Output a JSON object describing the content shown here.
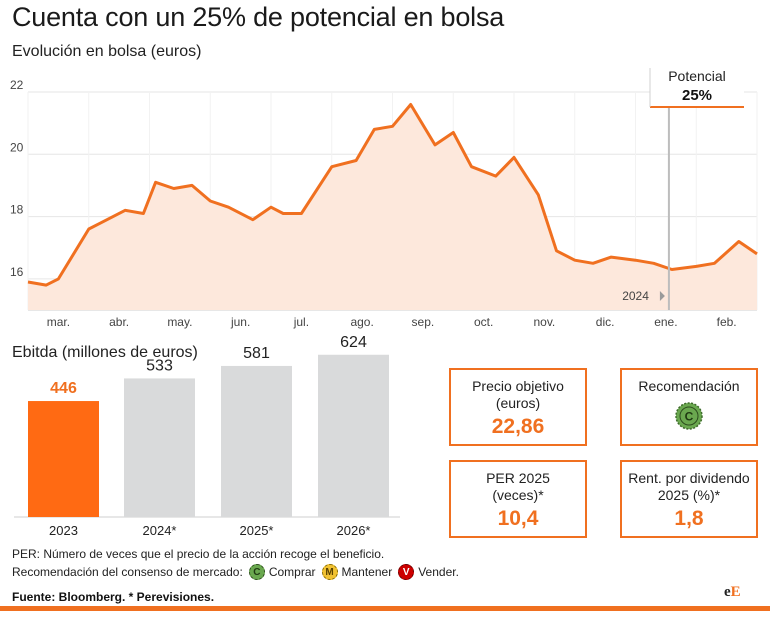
{
  "title": "Cuenta con un 25% de potencial en bolsa",
  "subtitle_price": "Evolución en bolsa (euros)",
  "subtitle_ebitda": "Ebitda (millones de euros)",
  "colors": {
    "accent": "#f07020",
    "area": "#fde8dc",
    "bar_highlight": "#ff6a13",
    "bar_other": "#d9dadb",
    "grid": "#e6e6e6"
  },
  "chart_data": [
    {
      "type": "line",
      "title": "Evolución en bolsa (euros)",
      "ylim": [
        15,
        22
      ],
      "yticks": [
        "22",
        "20",
        "18",
        "16"
      ],
      "x_labels": [
        "mar.",
        "abr.",
        "may.",
        "jun.",
        "jul.",
        "ago.",
        "sep.",
        "oct.",
        "nov.",
        "dic.",
        "ene.",
        "feb."
      ],
      "year_marker": "2024",
      "annotation": {
        "label": "Potencial",
        "value": "25%"
      },
      "series": [
        {
          "x": [
            0.0,
            0.3,
            0.5,
            1.0,
            1.2,
            1.6,
            1.9,
            2.1,
            2.4,
            2.7,
            3.0,
            3.3,
            3.7,
            4.0,
            4.2,
            4.5,
            5.0,
            5.4,
            5.7,
            6.0,
            6.3,
            6.7,
            7.0,
            7.3,
            7.7,
            8.0,
            8.4,
            8.7,
            9.0,
            9.3,
            9.6,
            10.0,
            10.3,
            10.6,
            11.0,
            11.3,
            11.7,
            12.0
          ],
          "y": [
            15.9,
            15.8,
            16.0,
            17.6,
            17.8,
            18.2,
            18.1,
            19.1,
            18.9,
            19.0,
            18.5,
            18.3,
            17.9,
            18.3,
            18.1,
            18.1,
            19.6,
            19.8,
            20.8,
            20.9,
            21.6,
            20.3,
            20.7,
            19.6,
            19.3,
            19.9,
            18.7,
            16.9,
            16.6,
            16.5,
            16.7,
            16.6,
            16.5,
            16.3,
            16.4,
            16.5,
            17.2,
            16.8
          ]
        }
      ]
    },
    {
      "type": "bar",
      "title": "Ebitda (millones de euros)",
      "categories": [
        "2023",
        "2024*",
        "2025*",
        "2026*"
      ],
      "values": [
        446,
        533,
        581,
        624
      ],
      "labels": [
        "446",
        "533",
        "581",
        "624"
      ],
      "highlight_index": 0
    }
  ],
  "metrics": {
    "precio_objetivo": {
      "label": "Precio objetivo (euros)",
      "value": "22,86"
    },
    "recomendacion": {
      "label": "Recomendación",
      "icon": "C"
    },
    "per": {
      "label": "PER 2025 (veces)*",
      "value": "10,4"
    },
    "dividendo": {
      "label": "Rent. por dividendo 2025 (%)*",
      "value": "1,8"
    }
  },
  "notes": {
    "per_note": "PER: Número de veces que el precio de la acción recoge el beneficio.",
    "legend_intro": "Recomendación del consenso de mercado:",
    "buy": {
      "letter": "C",
      "label": "Comprar",
      "color": "#6aa84f"
    },
    "hold": {
      "letter": "M",
      "label": "Mantener",
      "color": "#f1c232"
    },
    "sell": {
      "letter": "V",
      "label": "Vender.",
      "color": "#cc0000"
    }
  },
  "source": "Fuente: Bloomberg. * Perevisiones.",
  "logo": {
    "part1": "e",
    "part2": "E"
  }
}
